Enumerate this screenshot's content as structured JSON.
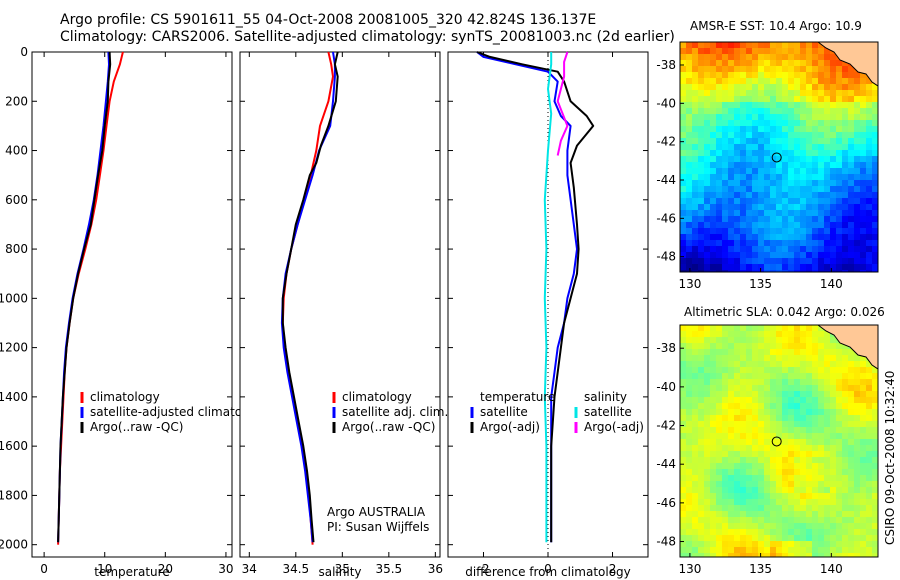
{
  "header": {
    "title_line1": "Argo profile: CS 5901611_55 04-Oct-2008 20081005_320 42.824S 136.137E",
    "title_line2": "Climatology: CARS2006. Satellite-adjusted climatology: synTS_20081003.nc (2d earlier)"
  },
  "credit": "CSIRO 09-Oct-2008 10:32:40",
  "colors": {
    "climatology": "#ff0000",
    "satellite": "#0000ff",
    "argo": "#000000",
    "sal_satellite": "#00e5e5",
    "sal_argo": "#ff00ff",
    "land": "#ffc896"
  },
  "chart_data": [
    {
      "type": "line",
      "xlabel": "temperature",
      "xlim": [
        -2,
        31
      ],
      "xticks": [
        0,
        10,
        20,
        30
      ],
      "ylim": [
        2050,
        0
      ],
      "yticks": [
        0,
        200,
        400,
        600,
        800,
        1000,
        1200,
        1400,
        1600,
        1800,
        2000
      ],
      "reversed_y": true,
      "legend": {
        "position": "lower-center",
        "entries": [
          "climatology",
          "satellite-adjusted climatology",
          "Argo(..raw -QC)"
        ]
      },
      "series": [
        {
          "name": "climatology",
          "color": "#ff0000",
          "points": [
            [
              13.0,
              0
            ],
            [
              12.5,
              50
            ],
            [
              11.5,
              120
            ],
            [
              10.8,
              200
            ],
            [
              10.3,
              300
            ],
            [
              9.8,
              400
            ],
            [
              9.2,
              500
            ],
            [
              8.6,
              600
            ],
            [
              7.8,
              700
            ],
            [
              6.8,
              800
            ],
            [
              5.7,
              900
            ],
            [
              4.8,
              1000
            ],
            [
              4.2,
              1100
            ],
            [
              3.7,
              1200
            ],
            [
              3.4,
              1300
            ],
            [
              3.2,
              1400
            ],
            [
              3.0,
              1500
            ],
            [
              2.8,
              1600
            ],
            [
              2.6,
              1700
            ],
            [
              2.5,
              1800
            ],
            [
              2.4,
              1900
            ],
            [
              2.3,
              2000
            ]
          ]
        },
        {
          "name": "satellite-adjusted climatology",
          "color": "#0000ff",
          "points": [
            [
              10.6,
              0
            ],
            [
              10.7,
              50
            ],
            [
              10.5,
              120
            ],
            [
              10.2,
              200
            ],
            [
              9.8,
              300
            ],
            [
              9.3,
              400
            ],
            [
              8.8,
              500
            ],
            [
              8.2,
              600
            ],
            [
              7.4,
              700
            ],
            [
              6.5,
              800
            ],
            [
              5.5,
              900
            ],
            [
              4.7,
              1000
            ],
            [
              4.1,
              1100
            ],
            [
              3.6,
              1200
            ],
            [
              3.3,
              1300
            ],
            [
              3.1,
              1400
            ],
            [
              2.9,
              1500
            ],
            [
              2.7,
              1600
            ],
            [
              2.6,
              1700
            ],
            [
              2.5,
              1800
            ],
            [
              2.4,
              1900
            ],
            [
              2.3,
              1990
            ]
          ]
        },
        {
          "name": "Argo(..raw -QC)",
          "color": "#000000",
          "points": [
            [
              10.8,
              0
            ],
            [
              10.9,
              50
            ],
            [
              10.6,
              120
            ],
            [
              10.5,
              200
            ],
            [
              10.0,
              300
            ],
            [
              9.6,
              400
            ],
            [
              8.9,
              500
            ],
            [
              8.3,
              600
            ],
            [
              7.7,
              700
            ],
            [
              6.6,
              800
            ],
            [
              5.6,
              900
            ],
            [
              4.8,
              1000
            ],
            [
              4.2,
              1100
            ],
            [
              3.7,
              1200
            ],
            [
              3.4,
              1300
            ],
            [
              3.1,
              1400
            ],
            [
              2.9,
              1500
            ],
            [
              2.7,
              1600
            ],
            [
              2.6,
              1700
            ],
            [
              2.5,
              1800
            ],
            [
              2.4,
              1900
            ],
            [
              2.3,
              1990
            ]
          ]
        }
      ]
    },
    {
      "type": "line",
      "xlabel": "salinity",
      "xlim": [
        33.9,
        36.05
      ],
      "xticks": [
        34,
        34.5,
        35,
        35.5,
        36
      ],
      "xticklabels": [
        "34",
        "34.5",
        "35",
        "35.5",
        "36"
      ],
      "ylim": [
        2050,
        0
      ],
      "reversed_y": true,
      "legend": {
        "position": "lower-center",
        "entries": [
          "climatology",
          "satellite adj. clim.",
          "Argo(..raw -QC)"
        ]
      },
      "annotation": [
        "Argo AUSTRALIA",
        "PI: Susan Wijffels"
      ],
      "series": [
        {
          "name": "climatology",
          "color": "#ff0000",
          "points": [
            [
              34.85,
              0
            ],
            [
              34.88,
              50
            ],
            [
              34.9,
              100
            ],
            [
              34.85,
              200
            ],
            [
              34.76,
              300
            ],
            [
              34.72,
              400
            ],
            [
              34.66,
              500
            ],
            [
              34.59,
              600
            ],
            [
              34.52,
              700
            ],
            [
              34.45,
              800
            ],
            [
              34.4,
              900
            ],
            [
              34.37,
              1000
            ],
            [
              34.36,
              1100
            ],
            [
              34.38,
              1200
            ],
            [
              34.42,
              1300
            ],
            [
              34.47,
              1400
            ],
            [
              34.52,
              1500
            ],
            [
              34.57,
              1600
            ],
            [
              34.61,
              1700
            ],
            [
              34.64,
              1800
            ],
            [
              34.66,
              1900
            ],
            [
              34.68,
              2000
            ]
          ]
        },
        {
          "name": "satellite adj. clim.",
          "color": "#0000ff",
          "points": [
            [
              34.9,
              0
            ],
            [
              34.92,
              50
            ],
            [
              34.92,
              100
            ],
            [
              34.9,
              200
            ],
            [
              34.87,
              300
            ],
            [
              34.75,
              400
            ],
            [
              34.68,
              500
            ],
            [
              34.6,
              600
            ],
            [
              34.52,
              700
            ],
            [
              34.45,
              800
            ],
            [
              34.39,
              900
            ],
            [
              34.36,
              1000
            ],
            [
              34.35,
              1100
            ],
            [
              34.37,
              1200
            ],
            [
              34.41,
              1300
            ],
            [
              34.46,
              1400
            ],
            [
              34.51,
              1500
            ],
            [
              34.56,
              1600
            ],
            [
              34.6,
              1700
            ],
            [
              34.63,
              1800
            ],
            [
              34.66,
              1900
            ],
            [
              34.68,
              1990
            ]
          ]
        },
        {
          "name": "Argo(..raw -QC)",
          "color": "#000000",
          "points": [
            [
              34.95,
              0
            ],
            [
              34.92,
              50
            ],
            [
              34.95,
              100
            ],
            [
              34.93,
              200
            ],
            [
              34.85,
              300
            ],
            [
              34.77,
              380
            ],
            [
              34.72,
              450
            ],
            [
              34.65,
              500
            ],
            [
              34.58,
              600
            ],
            [
              34.5,
              700
            ],
            [
              34.45,
              800
            ],
            [
              34.4,
              900
            ],
            [
              34.36,
              1000
            ],
            [
              34.36,
              1100
            ],
            [
              34.39,
              1200
            ],
            [
              34.43,
              1300
            ],
            [
              34.48,
              1400
            ],
            [
              34.53,
              1500
            ],
            [
              34.58,
              1600
            ],
            [
              34.62,
              1700
            ],
            [
              34.65,
              1800
            ],
            [
              34.67,
              1900
            ],
            [
              34.69,
              1990
            ]
          ]
        }
      ]
    },
    {
      "type": "line",
      "xlabel": "difference from climatology",
      "xlim": [
        -3.1,
        3.1
      ],
      "xticks": [
        -2,
        0,
        2
      ],
      "ylim": [
        2050,
        0
      ],
      "reversed_y": true,
      "zero_line": true,
      "legend": {
        "position": "lower-center",
        "columns": [
          {
            "heading": "temperature",
            "entries": [
              "satellite",
              "Argo(-adj)"
            ]
          },
          {
            "heading": "salinity",
            "entries": [
              "satellite",
              "Argo(-adj)"
            ]
          }
        ]
      },
      "series": [
        {
          "name": "temperature satellite",
          "color": "#0000ff",
          "points": [
            [
              -2.2,
              0
            ],
            [
              -2.0,
              20
            ],
            [
              -1.0,
              50
            ],
            [
              0.0,
              80
            ],
            [
              0.3,
              120
            ],
            [
              0.2,
              200
            ],
            [
              0.4,
              260
            ],
            [
              0.7,
              300
            ],
            [
              0.6,
              400
            ],
            [
              0.6,
              500
            ],
            [
              0.7,
              600
            ],
            [
              0.8,
              700
            ],
            [
              0.9,
              800
            ],
            [
              0.8,
              900
            ],
            [
              0.6,
              1000
            ],
            [
              0.5,
              1100
            ],
            [
              0.3,
              1200
            ],
            [
              0.2,
              1300
            ],
            [
              0.1,
              1400
            ],
            [
              0.1,
              1600
            ],
            [
              0.1,
              1800
            ],
            [
              0.1,
              1990
            ]
          ]
        },
        {
          "name": "temperature Argo(-adj)",
          "color": "#000000",
          "points": [
            [
              -2.2,
              0
            ],
            [
              -1.8,
              20
            ],
            [
              -0.8,
              50
            ],
            [
              0.3,
              80
            ],
            [
              0.5,
              120
            ],
            [
              0.7,
              200
            ],
            [
              1.2,
              260
            ],
            [
              1.4,
              300
            ],
            [
              0.9,
              380
            ],
            [
              0.7,
              450
            ],
            [
              0.8,
              550
            ],
            [
              0.9,
              700
            ],
            [
              0.95,
              800
            ],
            [
              0.9,
              900
            ],
            [
              0.7,
              1000
            ],
            [
              0.5,
              1100
            ],
            [
              0.4,
              1200
            ],
            [
              0.3,
              1300
            ],
            [
              0.2,
              1400
            ],
            [
              0.1,
              1600
            ],
            [
              0.1,
              1800
            ],
            [
              0.1,
              1990
            ]
          ]
        },
        {
          "name": "salinity satellite",
          "color": "#00e5e5",
          "points": [
            [
              0.1,
              0
            ],
            [
              0.1,
              50
            ],
            [
              0.0,
              150
            ],
            [
              0.1,
              250
            ],
            [
              0.0,
              400
            ],
            [
              -0.1,
              600
            ],
            [
              -0.05,
              800
            ],
            [
              -0.1,
              1000
            ],
            [
              -0.05,
              1200
            ],
            [
              -0.1,
              1400
            ],
            [
              -0.05,
              1600
            ],
            [
              -0.05,
              1800
            ],
            [
              -0.05,
              1990
            ]
          ]
        },
        {
          "name": "salinity Argo(-adj)",
          "color": "#ff00ff",
          "points": [
            [
              0.6,
              0
            ],
            [
              0.5,
              40
            ],
            [
              0.5,
              100
            ],
            [
              0.3,
              200
            ],
            [
              0.6,
              300
            ],
            [
              0.4,
              360
            ],
            [
              0.3,
              420
            ]
          ]
        }
      ]
    },
    {
      "type": "heatmap",
      "title": "AMSR-E SST: 10.4 Argo: 10.9",
      "xlim": [
        129.3,
        143.3
      ],
      "xticks": [
        130,
        135,
        140
      ],
      "ylim": [
        -48.8,
        -36.8
      ],
      "yticks": [
        -38,
        -40,
        -42,
        -44,
        -46,
        -48
      ],
      "marker": {
        "lon": 136.137,
        "lat": -42.824
      },
      "colorscale": "jet, warm north / cold south"
    },
    {
      "type": "heatmap",
      "title": "Altimetric SLA: 0.042 Argo: 0.026",
      "xlim": [
        129.3,
        143.3
      ],
      "xticks": [
        130,
        135,
        140
      ],
      "ylim": [
        -48.8,
        -36.8
      ],
      "yticks": [
        -38,
        -40,
        -42,
        -44,
        -46,
        -48
      ],
      "marker": {
        "lon": 136.137,
        "lat": -42.824
      },
      "colorscale": "jet, mostly green with yellow highs"
    }
  ]
}
